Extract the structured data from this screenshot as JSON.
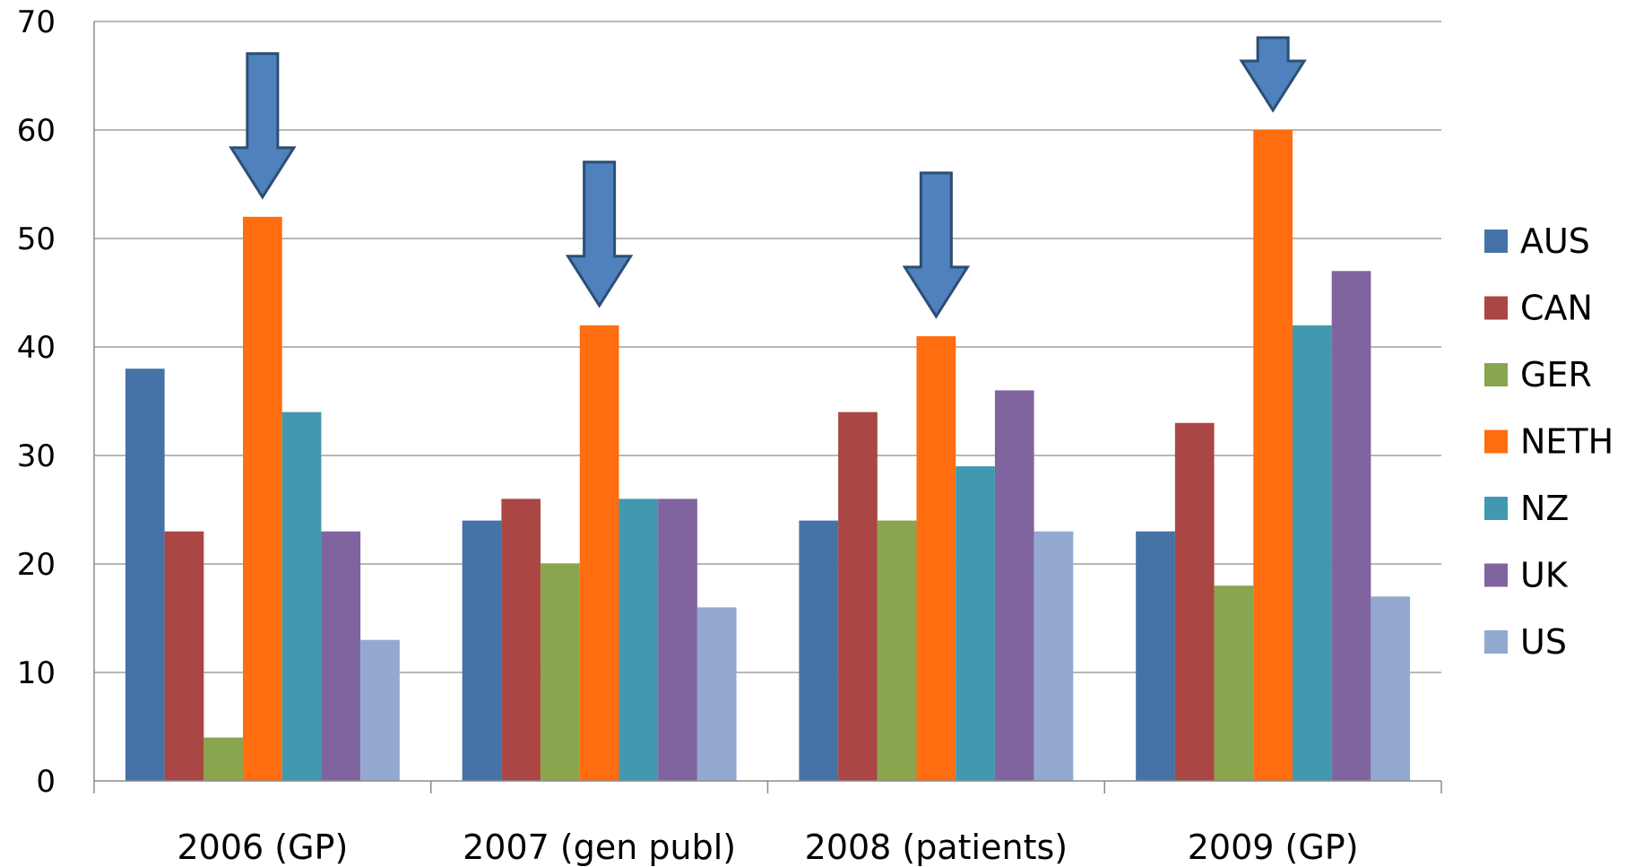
{
  "chart_data": {
    "type": "bar",
    "categories": [
      "2006 (GP)",
      "2007 (gen publ)",
      "2008 (patients)",
      "2009 (GP)"
    ],
    "series": [
      {
        "name": "AUS",
        "color": "#4572A7",
        "values": [
          38,
          24,
          24,
          23
        ]
      },
      {
        "name": "CAN",
        "color": "#AA4643",
        "values": [
          23,
          26,
          34,
          33
        ]
      },
      {
        "name": "GER",
        "color": "#89A54E",
        "values": [
          4,
          20,
          24,
          18
        ]
      },
      {
        "name": "NETH",
        "color": "#FF6D10",
        "values": [
          52,
          42,
          41,
          60
        ]
      },
      {
        "name": "NZ",
        "color": "#4198AF",
        "values": [
          34,
          26,
          29,
          42
        ]
      },
      {
        "name": "UK",
        "color": "#80649F",
        "values": [
          23,
          26,
          36,
          47
        ]
      },
      {
        "name": "US",
        "color": "#93A9CF",
        "values": [
          13,
          16,
          23,
          17
        ]
      }
    ],
    "yticks": [
      "0",
      "10",
      "20",
      "30",
      "40",
      "50",
      "60",
      "70"
    ],
    "ylim": [
      0,
      70
    ],
    "grid": true,
    "legend_position": "right",
    "annotations": {
      "type": "down-arrows",
      "target_series": "NETH",
      "color": "#4F81BD"
    }
  }
}
